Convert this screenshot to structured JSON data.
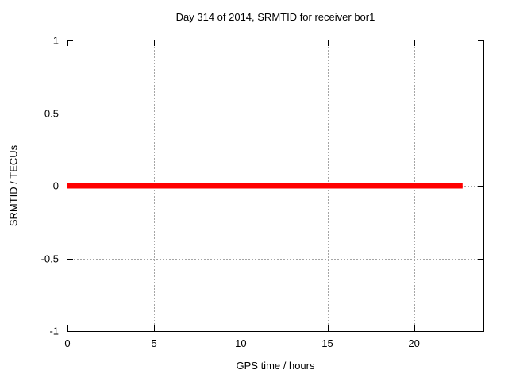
{
  "chart_data": {
    "type": "line",
    "title": "Day 314 of 2014, SRMTID for receiver bor1",
    "xlabel": "GPS time / hours",
    "ylabel": "SRMTID / TECUs",
    "xlim": [
      0,
      24
    ],
    "ylim": [
      -1,
      1
    ],
    "xticks": [
      0,
      5,
      10,
      15,
      20
    ],
    "yticks": [
      1,
      0.5,
      0,
      -0.5,
      -1
    ],
    "grid": true,
    "legend": "none",
    "series": [
      {
        "name": "SRMTID",
        "color": "#ff0000",
        "line_width": 7,
        "x": [
          0,
          22.8
        ],
        "y": [
          0,
          0
        ]
      }
    ]
  },
  "colors": {
    "background": "#ffffff",
    "border": "#000000",
    "grid": "#a5a5a5",
    "text": "#000000",
    "series": "#ff0000"
  }
}
